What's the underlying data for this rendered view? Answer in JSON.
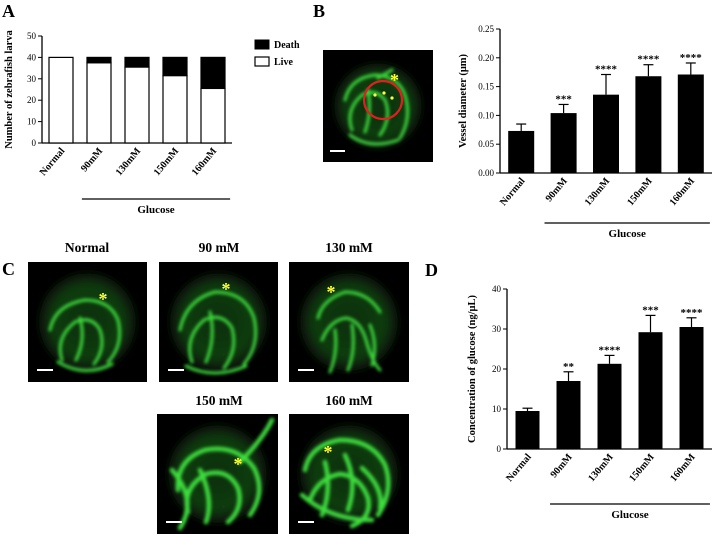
{
  "panels": {
    "a": "A",
    "b": "B",
    "c": "C",
    "d": "D"
  },
  "chart_data": [
    {
      "id": "A",
      "type": "bar",
      "stacked": true,
      "categories": [
        "Normal",
        "90mM",
        "130mM",
        "150mM",
        "160mM"
      ],
      "series": [
        {
          "name": "Live",
          "values": [
            40,
            37.5,
            35.5,
            31.5,
            25.5
          ],
          "color": "#ffffff"
        },
        {
          "name": "Death",
          "values": [
            0,
            2.5,
            4.5,
            8.5,
            14.5
          ],
          "color": "#000000"
        }
      ],
      "ylabel": "Number of zebrafish larva",
      "group_label": "Glucose",
      "ylim": [
        0,
        50
      ],
      "yticks": [
        0,
        10,
        20,
        30,
        40,
        50
      ],
      "legend_position": "right"
    },
    {
      "id": "B",
      "type": "bar",
      "categories": [
        "Normal",
        "90mM",
        "130mM",
        "150mM",
        "160mM"
      ],
      "values": [
        0.073,
        0.104,
        0.136,
        0.168,
        0.171
      ],
      "errors": [
        0.012,
        0.015,
        0.035,
        0.02,
        0.02
      ],
      "significance": [
        "",
        "***",
        "****",
        "****",
        "****"
      ],
      "ylabel": "Vessel diameter (μm)",
      "group_label": "Glucose",
      "ylim": [
        0,
        0.25
      ],
      "yticks": [
        "0.00",
        "0.05",
        "0.10",
        "0.15",
        "0.20",
        "0.25"
      ]
    },
    {
      "id": "D",
      "type": "bar",
      "categories": [
        "Normal",
        "90mM",
        "130mM",
        "150mM",
        "160mM"
      ],
      "values": [
        9.5,
        17,
        21.3,
        29.2,
        30.5
      ],
      "errors": [
        0.7,
        2.3,
        2.1,
        4.2,
        2.3
      ],
      "significance": [
        "",
        "**",
        "****",
        "***",
        "****"
      ],
      "ylabel": "Concentration of glucose (ng/μL)",
      "group_label": "Glucose",
      "ylim": [
        0,
        40
      ],
      "yticks": [
        0,
        10,
        20,
        30,
        40
      ]
    }
  ],
  "image_labels": [
    "Normal",
    "90 mM",
    "130 mM",
    "150 mM",
    "160 mM"
  ],
  "colors": {
    "vessel": "#33cc33",
    "marker": "#ffff33",
    "circle": "#e02020",
    "bar": "#000000"
  }
}
